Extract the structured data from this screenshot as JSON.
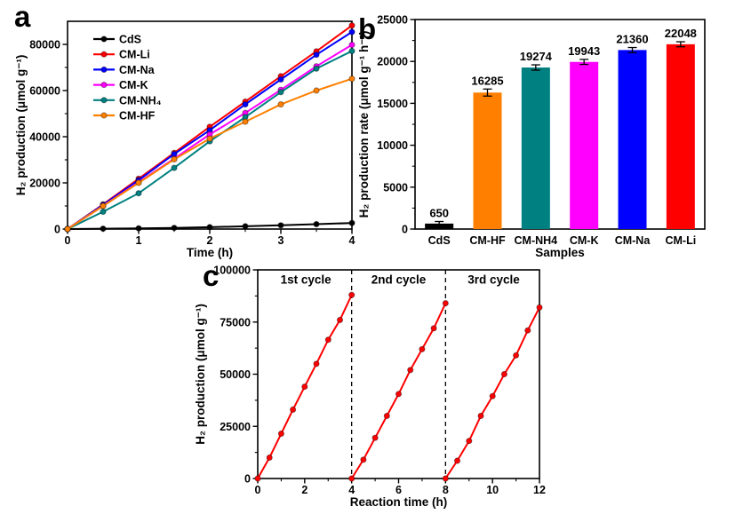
{
  "figure": {
    "background": "#ffffff",
    "description": "Three-panel photocatalysis figure: a) H2 production curves, b) H2 production rate bars, c) cycling stability"
  },
  "chart_data": [
    {
      "id": "a",
      "panel_label": "a",
      "type": "line",
      "title": "",
      "xlabel": "Time (h)",
      "ylabel": "H₂ production (μmol g⁻¹)",
      "xlim": [
        0,
        4
      ],
      "ylim": [
        0,
        90000
      ],
      "xticks": [
        0,
        1,
        2,
        3,
        4
      ],
      "yticks": [
        0,
        20000,
        40000,
        60000,
        80000
      ],
      "x_minor_step": 0.5,
      "y_minor_step": 10000,
      "grid": false,
      "legend_position": "upper-left",
      "x": [
        0,
        0.5,
        1,
        1.5,
        2,
        2.5,
        3,
        3.5,
        4
      ],
      "series": [
        {
          "name": "CdS",
          "color": "#000000",
          "values": [
            0,
            150,
            300,
            500,
            800,
            1200,
            1600,
            2100,
            2600
          ]
        },
        {
          "name": "CM-Li",
          "color": "#ff0000",
          "values": [
            0,
            10700,
            21800,
            33000,
            44300,
            55200,
            66200,
            77000,
            88200
          ]
        },
        {
          "name": "CM-Na",
          "color": "#0000ff",
          "values": [
            0,
            10500,
            21200,
            32500,
            42800,
            54000,
            64800,
            75500,
            85400
          ]
        },
        {
          "name": "CM-K",
          "color": "#ff00ff",
          "values": [
            0,
            10000,
            20300,
            30500,
            41000,
            50300,
            60300,
            70500,
            79800
          ]
        },
        {
          "name": "CM-NH₄",
          "color": "#008080",
          "values": [
            0,
            7500,
            15500,
            26500,
            38000,
            48500,
            59300,
            69500,
            77100
          ]
        },
        {
          "name": "CM-HF",
          "color": "#ff8000",
          "values": [
            0,
            10000,
            20000,
            30200,
            39200,
            46500,
            54000,
            60000,
            65100
          ]
        }
      ]
    },
    {
      "id": "b",
      "panel_label": "b",
      "type": "bar",
      "title": "",
      "xlabel": "Samples",
      "ylabel": "H₂ production rate (μmol g⁻¹ h⁻¹)",
      "ylim": [
        0,
        25000
      ],
      "yticks": [
        0,
        5000,
        10000,
        15000,
        20000,
        25000
      ],
      "y_minor_step": 2500,
      "grid": false,
      "categories": [
        "CdS",
        "CM-HF",
        "CM-NH4",
        "CM-K",
        "CM-Na",
        "CM-Li"
      ],
      "values": [
        650,
        16285,
        19274,
        19943,
        21360,
        22048
      ],
      "errors": [
        250,
        420,
        320,
        300,
        300,
        300
      ],
      "value_labels": [
        "650",
        "16285",
        "19274",
        "19943",
        "21360",
        "22048"
      ],
      "bar_colors": [
        "#000000",
        "#ff8000",
        "#008080",
        "#ff00ff",
        "#0000ff",
        "#ff0000"
      ]
    },
    {
      "id": "c",
      "panel_label": "c",
      "type": "line",
      "title": "",
      "xlabel": "Reaction time (h)",
      "ylabel": "H₂ production (μmol g⁻¹)",
      "xlim": [
        0,
        12
      ],
      "ylim": [
        0,
        100000
      ],
      "xticks": [
        0,
        2,
        4,
        6,
        8,
        10,
        12
      ],
      "yticks": [
        0,
        25000,
        50000,
        75000,
        100000
      ],
      "x_minor_step": 1,
      "y_minor_step": 12500,
      "grid": false,
      "dashed_vlines": [
        4,
        8
      ],
      "annotations": [
        {
          "text": "1st cycle",
          "x": 2.05,
          "y": 93500
        },
        {
          "text": "2nd cycle",
          "x": 6.0,
          "y": 93500
        },
        {
          "text": "3rd cycle",
          "x": 10.05,
          "y": 93500
        }
      ],
      "series": [
        {
          "name": "1st cycle",
          "color": "#ff0000",
          "x": [
            0,
            0.5,
            1,
            1.5,
            2,
            2.5,
            3,
            3.5,
            4
          ],
          "values": [
            0,
            10000,
            21500,
            33000,
            44000,
            55000,
            66500,
            76000,
            88000
          ]
        },
        {
          "name": "2nd cycle",
          "color": "#ff0000",
          "x": [
            4,
            4.5,
            5,
            5.5,
            6,
            6.5,
            7,
            7.5,
            8
          ],
          "values": [
            0,
            9000,
            19500,
            30000,
            40500,
            52000,
            62000,
            72000,
            84000
          ]
        },
        {
          "name": "3rd cycle",
          "color": "#ff0000",
          "x": [
            8,
            8.5,
            9,
            9.5,
            10,
            10.5,
            11,
            11.5,
            12
          ],
          "values": [
            0,
            8500,
            18000,
            30000,
            39500,
            50000,
            59000,
            71000,
            82000
          ]
        }
      ]
    }
  ]
}
